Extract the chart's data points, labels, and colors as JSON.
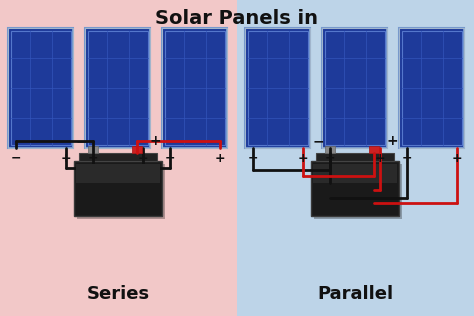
{
  "title": "Solar Panels in",
  "left_label": "Series",
  "right_label": "Parallel",
  "bg_left": "#f2c8c8",
  "bg_right": "#bdd4e8",
  "panel_color_mid": "#1e3a9a",
  "panel_grid": "#3355bb",
  "panel_border": "#7799cc",
  "panel_frame": "#aabbdd",
  "wire_black": "#111111",
  "wire_red": "#cc1111",
  "plus_minus_color": "#111111",
  "title_fontsize": 14,
  "label_fontsize": 13,
  "figsize": [
    4.74,
    3.16
  ],
  "dpi": 100
}
